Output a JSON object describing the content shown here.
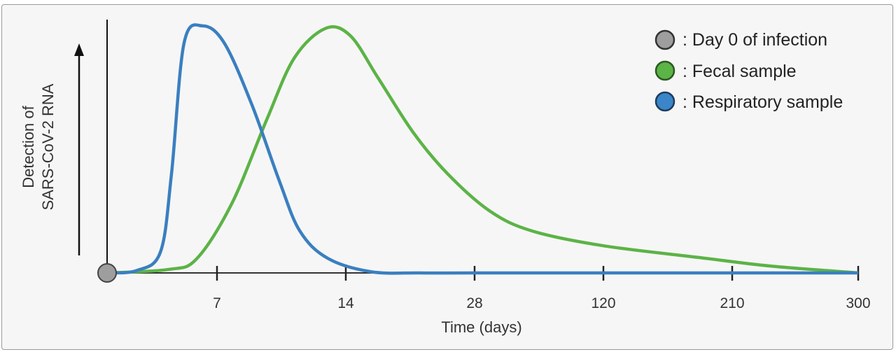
{
  "chart_data": {
    "type": "line",
    "title": "",
    "xlabel": "Time (days)",
    "ylabel_lines": [
      "Detection of",
      "SARS-CoV-2 RNA"
    ],
    "x_ticks": [
      7,
      14,
      28,
      120,
      210,
      300
    ],
    "x_tick_labels": [
      "7",
      "14",
      "28",
      "120",
      "210",
      "300"
    ],
    "xlim": [
      0,
      300
    ],
    "x_scale": "non-linear (equal spacing between ticks)",
    "ylim": [
      0,
      1
    ],
    "y_ticks": [],
    "grid": false,
    "legend_placement": "top-right",
    "legend": [
      {
        "marker": "circle",
        "color": "#9e9e9e",
        "label": ": Day 0 of infection"
      },
      {
        "marker": "circle",
        "color": "#5cb346",
        "label": ": Fecal sample"
      },
      {
        "marker": "circle",
        "color": "#3a86c8",
        "label": ": Respiratory sample"
      }
    ],
    "day0_marker": {
      "x": 0,
      "y": 0,
      "color": "#9e9e9e"
    },
    "series": [
      {
        "name": "Respiratory sample",
        "color": "#3a7fc0",
        "x": [
          0,
          1.9,
          3.4,
          4.1,
          4.9,
          6.1,
          7.4,
          8.9,
          10.4,
          11.5,
          13.0,
          16.7,
          22,
          28,
          120,
          210,
          300
        ],
        "y": [
          0,
          0.01,
          0.085,
          0.4,
          0.93,
          1.0,
          0.93,
          0.68,
          0.37,
          0.17,
          0.06,
          0.005,
          0,
          0,
          0,
          0,
          0
        ]
      },
      {
        "name": "Fecal sample",
        "color": "#5cb346",
        "x": [
          0,
          3.9,
          5.7,
          7.8,
          9.7,
          11.2,
          12.9,
          14.5,
          17.5,
          21.3,
          25.1,
          39,
          69,
          120,
          187.5,
          237,
          300
        ],
        "y": [
          0,
          0.014,
          0.057,
          0.28,
          0.62,
          0.87,
          0.99,
          0.96,
          0.79,
          0.57,
          0.4,
          0.25,
          0.17,
          0.11,
          0.062,
          0.028,
          0
        ]
      }
    ]
  }
}
